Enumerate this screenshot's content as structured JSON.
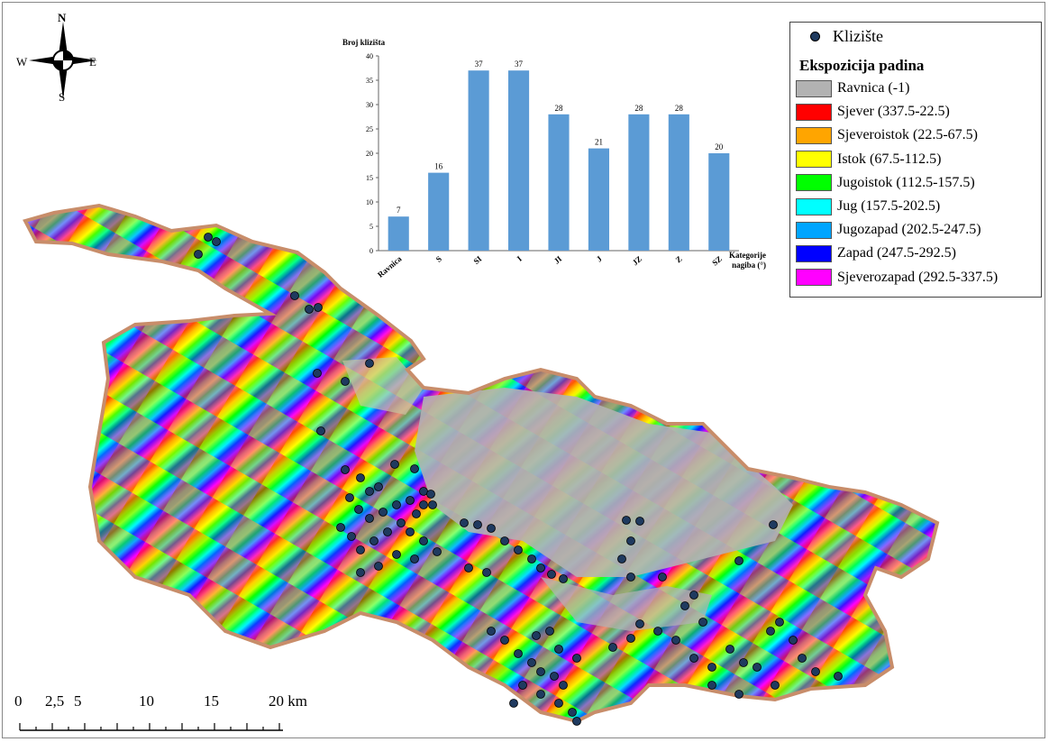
{
  "compass": {
    "n": "N",
    "s": "S",
    "e": "E",
    "w": "W"
  },
  "chart_data": {
    "type": "bar",
    "ylabel": "Broj klizišta",
    "xlabel": "Kategorije nagiba (°)",
    "categories": [
      "Ravnica",
      "S",
      "SI",
      "I",
      "JI",
      "J",
      "JZ",
      "Z",
      "SZ"
    ],
    "values": [
      7,
      16,
      37,
      37,
      28,
      21,
      28,
      28,
      20
    ],
    "ylim": [
      0,
      40
    ],
    "yticks": [
      0,
      5,
      10,
      15,
      20,
      25,
      30,
      35,
      40
    ],
    "bar_color": "#5b9bd5",
    "grid": false
  },
  "legend": {
    "point_label": "Klizište",
    "point_color": "#1f3a5f",
    "title": "Ekspozicija padina",
    "items": [
      {
        "label": "Ravnica (-1)",
        "color": "#b2b2b2"
      },
      {
        "label": "Sjever (337.5-22.5)",
        "color": "#ff0000"
      },
      {
        "label": "Sjeveroistok (22.5-67.5)",
        "color": "#ffa500"
      },
      {
        "label": "Istok (67.5-112.5)",
        "color": "#ffff00"
      },
      {
        "label": "Jugoistok (112.5-157.5)",
        "color": "#00ff00"
      },
      {
        "label": "Jug (157.5-202.5)",
        "color": "#00ffff"
      },
      {
        "label": "Jugozapad (202.5-247.5)",
        "color": "#00a5ff"
      },
      {
        "label": "Zapad (247.5-292.5)",
        "color": "#0000ff"
      },
      {
        "label": "Sjeverozapad (292.5-337.5)",
        "color": "#ff00ff"
      }
    ]
  },
  "scalebar": {
    "labels": [
      "0",
      "2,5",
      "5",
      "10",
      "15",
      "20 km"
    ]
  }
}
